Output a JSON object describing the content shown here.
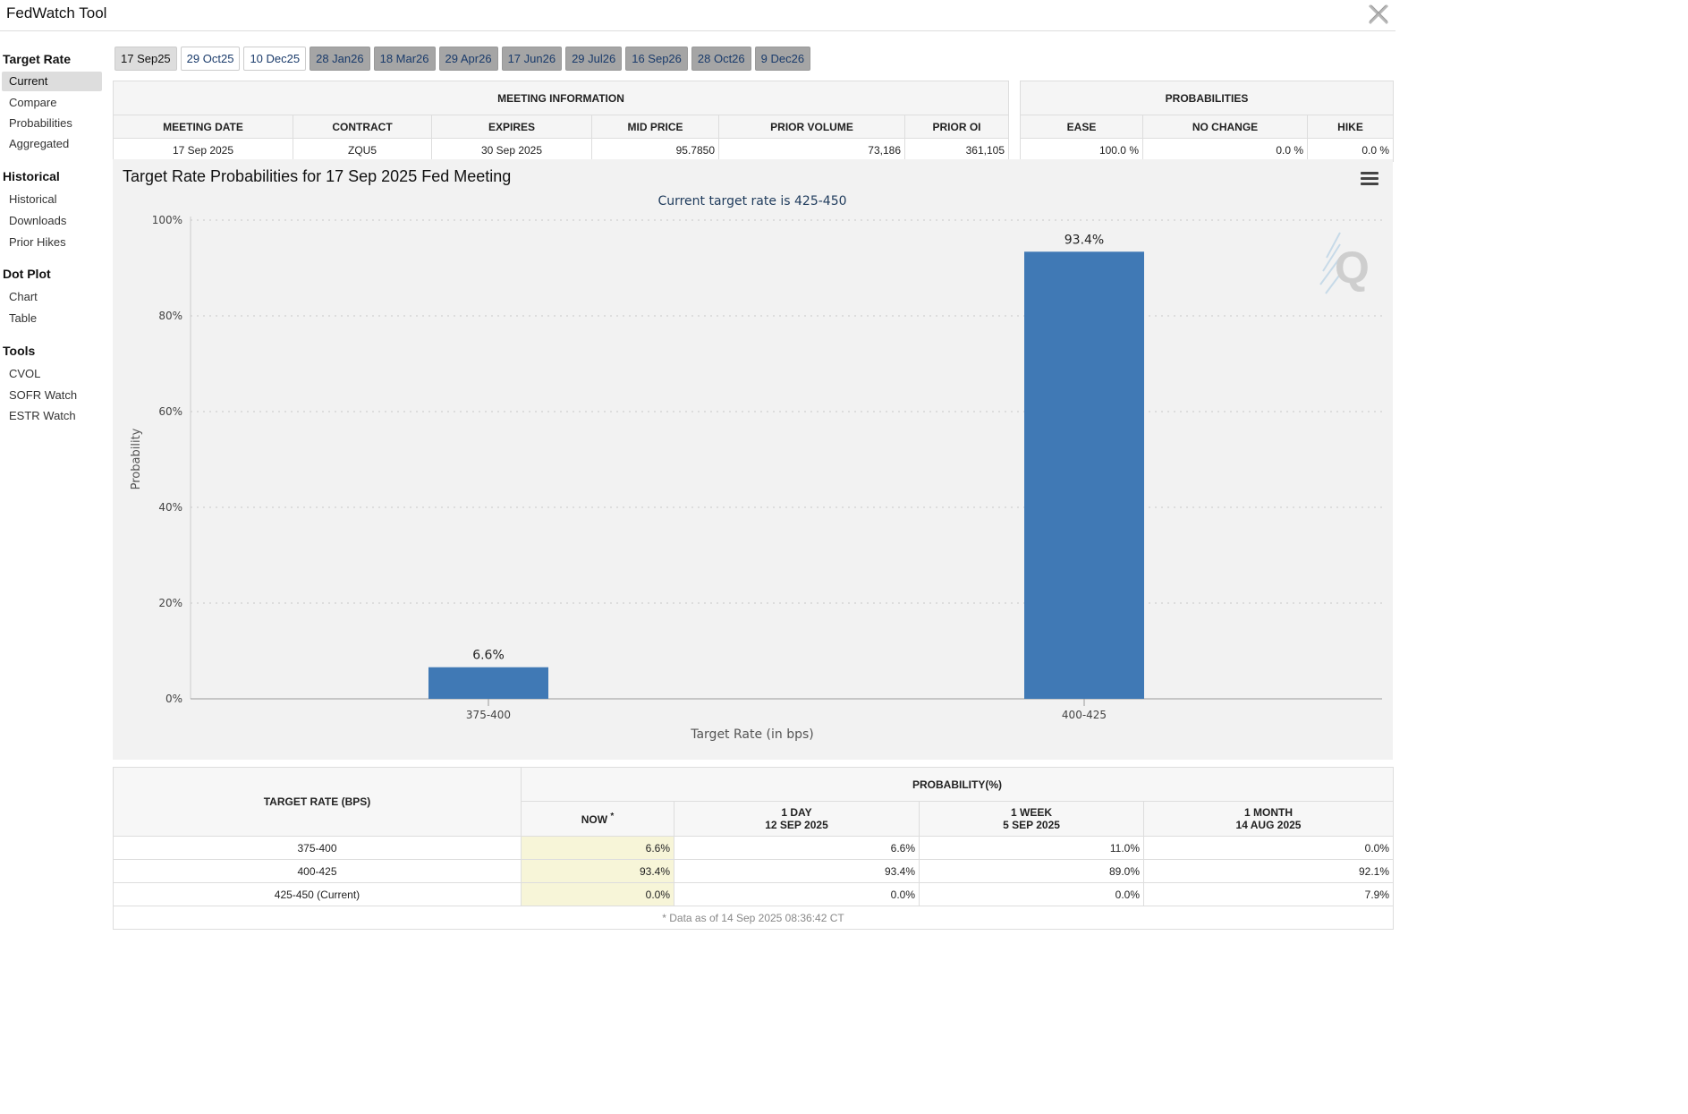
{
  "app": {
    "title": "FedWatch Tool",
    "close_icon": "close-x-icon"
  },
  "sidebar": {
    "sections": [
      {
        "heading": "Target Rate",
        "items": [
          "Current",
          "Compare",
          "Probabilities",
          "Aggregated"
        ]
      },
      {
        "heading": "Historical",
        "items": [
          "Historical",
          "Downloads",
          "Prior Hikes"
        ]
      },
      {
        "heading": "Dot Plot",
        "items": [
          "Chart",
          "Table"
        ]
      },
      {
        "heading": "Tools",
        "items": [
          "CVOL",
          "SOFR Watch",
          "ESTR Watch"
        ]
      }
    ],
    "active_item": "Current"
  },
  "meeting_tabs": [
    "17 Sep25",
    "29 Oct25",
    "10 Dec25",
    "28 Jan26",
    "18 Mar26",
    "29 Apr26",
    "17 Jun26",
    "29 Jul26",
    "16 Sep26",
    "28 Oct26",
    "9 Dec26"
  ],
  "selected_tab": "17 Sep25",
  "meeting_info": {
    "caption": "MEETING INFORMATION",
    "headers": [
      "MEETING DATE",
      "CONTRACT",
      "EXPIRES",
      "MID PRICE",
      "PRIOR VOLUME",
      "PRIOR OI"
    ],
    "row": [
      "17 Sep 2025",
      "ZQU5",
      "30 Sep 2025",
      "95.7850",
      "73,186",
      "361,105"
    ]
  },
  "probabilities": {
    "caption": "PROBABILITIES",
    "headers": [
      "EASE",
      "NO CHANGE",
      "HIKE"
    ],
    "row": [
      "100.0 %",
      "0.0 %",
      "0.0 %"
    ]
  },
  "chart": {
    "title": "Target Rate Probabilities for 17 Sep 2025 Fed Meeting",
    "subtitle": "Current target rate is 425-450",
    "menu_icon": "hamburger-menu-icon",
    "watermark": "Q",
    "bar_color": "#4079b5"
  },
  "chart_data": {
    "type": "bar",
    "title": "Target Rate Probabilities for 17 Sep 2025 Fed Meeting",
    "subtitle": "Current target rate is 425-450",
    "categories": [
      "375-400",
      "400-425"
    ],
    "values": [
      6.6,
      93.4
    ],
    "data_labels": [
      "6.6%",
      "93.4%"
    ],
    "xlabel": "Target Rate (in bps)",
    "ylabel": "Probability",
    "ylim": [
      0,
      100
    ],
    "yticks": [
      "0%",
      "20%",
      "40%",
      "60%",
      "80%",
      "100%"
    ],
    "grid": true,
    "legend": false
  },
  "prob_table": {
    "rate_header": "TARGET RATE (BPS)",
    "group_header": "PROBABILITY(%)",
    "col_now": "NOW",
    "col_now_mark": "*",
    "col_heads": [
      {
        "line1": "1 DAY",
        "line2": "12 SEP 2025"
      },
      {
        "line1": "1 WEEK",
        "line2": "5 SEP 2025"
      },
      {
        "line1": "1 MONTH",
        "line2": "14 AUG 2025"
      }
    ],
    "rows": [
      {
        "rate": "375-400",
        "now": "6.6%",
        "vals": [
          "6.6%",
          "11.0%",
          "0.0%"
        ]
      },
      {
        "rate": "400-425",
        "now": "93.4%",
        "vals": [
          "93.4%",
          "89.0%",
          "92.1%"
        ]
      },
      {
        "rate": "425-450 (Current)",
        "now": "0.0%",
        "vals": [
          "0.0%",
          "0.0%",
          "7.9%"
        ]
      }
    ],
    "footnote": "* Data as of 14 Sep 2025 08:36:42 CT"
  }
}
